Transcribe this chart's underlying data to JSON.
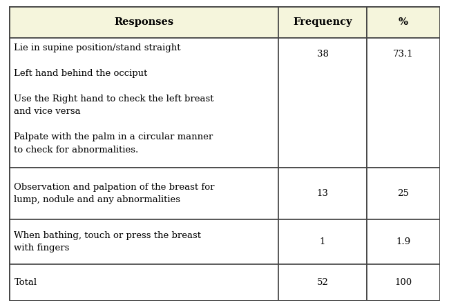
{
  "header": [
    "Responses",
    "Frequency",
    "%"
  ],
  "rows": [
    {
      "response": "Lie in supine position/stand straight\n\nLeft hand behind the occiput\n\nUse the Right hand to check the left breast\nand vice versa\n\nPalpate with the palm in a circular manner\nto check for abnormalities.",
      "frequency": "38",
      "percent": "73.1"
    },
    {
      "response": "Observation and palpation of the breast for\nlump, nodule and any abnormalities",
      "frequency": "13",
      "percent": "25"
    },
    {
      "response": "When bathing, touch or press the breast\nwith fingers",
      "frequency": "1",
      "percent": "1.9"
    },
    {
      "response": "Total",
      "frequency": "52",
      "percent": "100"
    }
  ],
  "header_bg": "#f5f5dc",
  "row_bg": "#ffffff",
  "border_color": "#444444",
  "header_font_size": 10.5,
  "body_font_size": 9.5,
  "figsize": [
    6.5,
    4.45
  ],
  "dpi": 100
}
